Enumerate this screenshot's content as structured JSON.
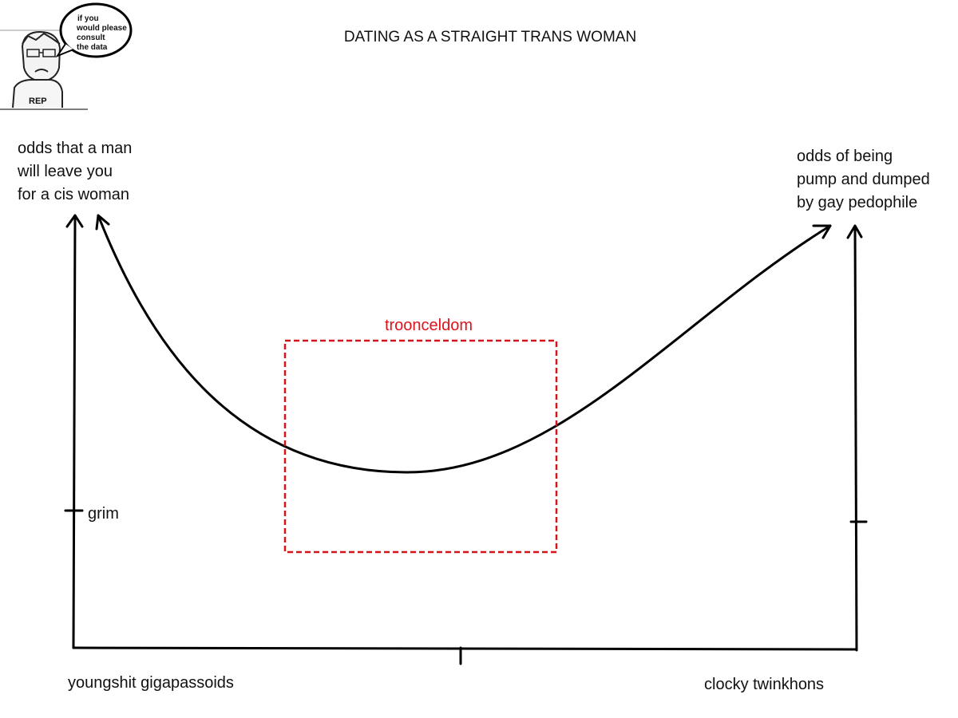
{
  "header": {
    "title": "DATING AS A STRAIGHT TRANS WOMAN"
  },
  "icon": {
    "speech_bubble": [
      "if you",
      "would please",
      "consult",
      "the data"
    ],
    "shirt": "REP"
  },
  "axes": {
    "left_label": [
      "odds that a man",
      "will leave you",
      "for a cis woman"
    ],
    "right_label": [
      "odds of being",
      "pump and dumped",
      "by gay pedophile"
    ],
    "left_tick_label": "grim",
    "bottom_left_label": "youngshit gigapassoids",
    "bottom_right_label": "clocky twinkhons"
  },
  "box": {
    "label": "trooncеldom"
  }
}
